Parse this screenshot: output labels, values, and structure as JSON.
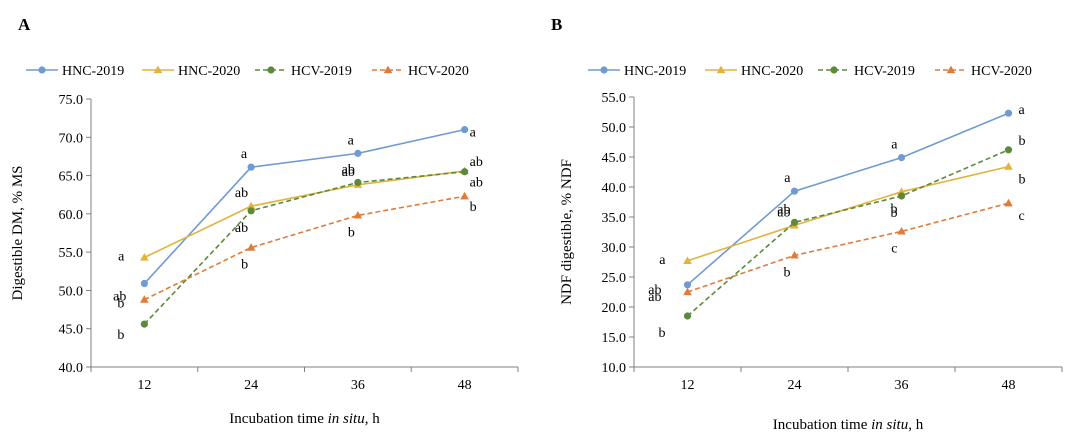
{
  "chart_data": [
    {
      "panel": "A",
      "type": "line",
      "title": "",
      "xlabel": "Incubation time in situ, h",
      "xlabel_parts": [
        "Incubation time ",
        "in situ",
        ", h"
      ],
      "ylabel": "Digestible DM, % MS",
      "ylim": [
        40.0,
        75.0
      ],
      "y_ticks": [
        "40.0",
        "45.0",
        "50.0",
        "55.0",
        "60.0",
        "65.0",
        "70.0",
        "75.0"
      ],
      "categories": [
        "12",
        "24",
        "36",
        "48"
      ],
      "grid": false,
      "legend_position": "top",
      "series": [
        {
          "name": "HNC-2019",
          "color": "#6f9bd3",
          "marker": "circle",
          "dash": "solid",
          "values": [
            50.9,
            66.1,
            67.9,
            71.0
          ],
          "labels": [
            "ab",
            "a",
            "a",
            "a"
          ]
        },
        {
          "name": "HNC-2020",
          "color": "#e3b23a",
          "marker": "triangle",
          "dash": "solid",
          "values": [
            54.3,
            61.0,
            63.8,
            65.6
          ],
          "labels": [
            "a",
            "ab",
            "ab",
            "ab"
          ]
        },
        {
          "name": "HCV-2019",
          "color": "#5b8a3a",
          "marker": "circle",
          "dash": "dashed",
          "values": [
            45.6,
            60.4,
            64.1,
            65.5
          ],
          "labels": [
            "b",
            "ab",
            "ab",
            "ab"
          ]
        },
        {
          "name": "HCV-2020",
          "color": "#e07b39",
          "marker": "triangle",
          "dash": "dashed",
          "values": [
            48.8,
            55.6,
            59.8,
            62.3
          ],
          "labels": [
            "b",
            "b",
            "b",
            "b"
          ]
        }
      ]
    },
    {
      "panel": "B",
      "type": "line",
      "title": "",
      "xlabel": "Incubation time in situ, h",
      "xlabel_parts": [
        "Incubation time ",
        "in situ",
        ", h"
      ],
      "ylabel": "NDF digestible, % NDF",
      "ylim": [
        10.0,
        55.0
      ],
      "y_ticks": [
        "10.0",
        "15.0",
        "20.0",
        "25.0",
        "30.0",
        "35.0",
        "40.0",
        "45.0",
        "50.0",
        "55.0"
      ],
      "categories": [
        "12",
        "24",
        "36",
        "48"
      ],
      "grid": false,
      "legend_position": "top",
      "series": [
        {
          "name": "HNC-2019",
          "color": "#6f9bd3",
          "marker": "circle",
          "dash": "solid",
          "values": [
            23.7,
            39.3,
            44.9,
            52.3
          ],
          "labels": [
            "ab",
            "a",
            "a",
            "a"
          ]
        },
        {
          "name": "HNC-2020",
          "color": "#e3b23a",
          "marker": "triangle",
          "dash": "solid",
          "values": [
            27.7,
            33.6,
            39.2,
            43.4
          ],
          "labels": [
            "a",
            "ab",
            "b",
            "b"
          ]
        },
        {
          "name": "HCV-2019",
          "color": "#5b8a3a",
          "marker": "circle",
          "dash": "dashed",
          "values": [
            18.5,
            34.1,
            38.5,
            46.2
          ],
          "labels": [
            "b",
            "ab",
            "b",
            "b"
          ]
        },
        {
          "name": "HCV-2020",
          "color": "#e07b39",
          "marker": "triangle",
          "dash": "dashed",
          "values": [
            22.5,
            28.6,
            32.6,
            37.3
          ],
          "labels": [
            "ab",
            "b",
            "c",
            "c"
          ]
        }
      ]
    }
  ]
}
